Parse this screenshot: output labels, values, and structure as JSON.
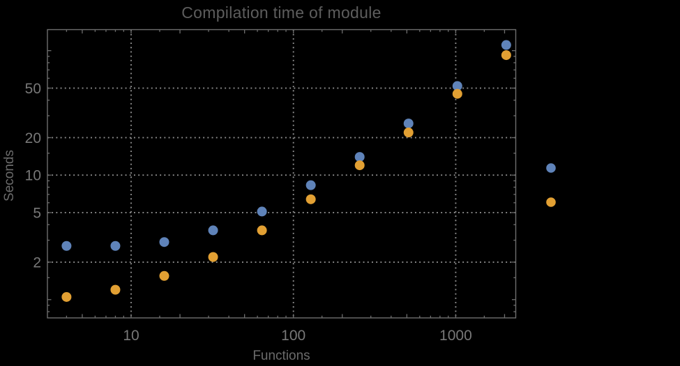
{
  "chart_data": {
    "type": "scatter",
    "title": "Compilation time of module",
    "xlabel": "Functions",
    "ylabel": "Seconds",
    "x_scale": "log",
    "y_scale": "log",
    "grid": "dotted",
    "xlim": [
      3.05,
      2344
    ],
    "ylim": [
      0.713,
      147.5
    ],
    "x_tick_labels": [
      10,
      100,
      1000
    ],
    "y_tick_labels": [
      2,
      5,
      10,
      20,
      50
    ],
    "x": [
      4,
      8,
      16,
      32,
      64,
      128,
      256,
      512,
      1024,
      2048
    ],
    "series": [
      {
        "marker": "circle",
        "color": "#5f83b9",
        "values": [
          2.7,
          2.7,
          2.9,
          3.6,
          5.1,
          8.3,
          14,
          26,
          52,
          111
        ]
      },
      {
        "marker": "circle",
        "color": "#e2a033",
        "values": [
          1.05,
          1.2,
          1.55,
          2.2,
          3.6,
          6.4,
          12,
          22,
          45,
          92
        ]
      }
    ],
    "legend_markers": [
      {
        "color": "#5f83b9"
      },
      {
        "color": "#e2a033"
      }
    ]
  }
}
